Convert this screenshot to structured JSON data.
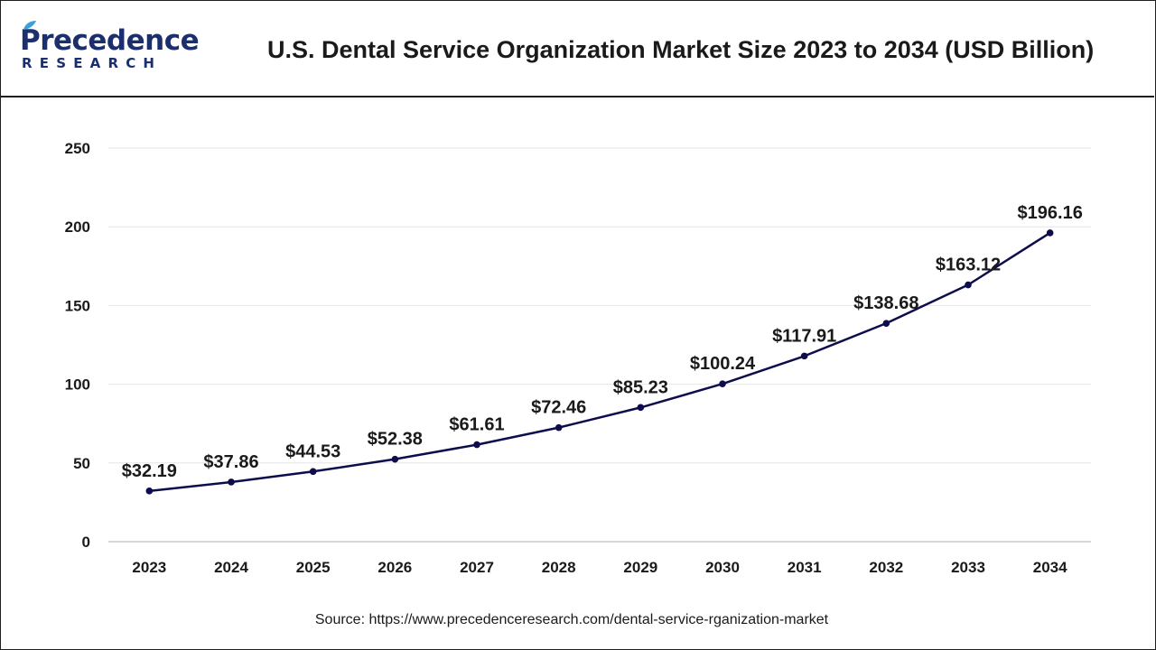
{
  "brand": {
    "name_main": "Precedence",
    "name_sub": "RESEARCH",
    "color": "#1b2f6e",
    "accent": "#3aa2d8"
  },
  "title": "U.S. Dental Service Organization Market Size 2023 to 2034 (USD Billion)",
  "source": "Source: https://www.precedenceresearch.com/dental-service-rganization-market",
  "chart_data": {
    "type": "line",
    "title": "U.S. Dental Service Organization Market Size 2023 to 2034 (USD Billion)",
    "xlabel": "",
    "ylabel": "",
    "ylim": [
      0,
      250
    ],
    "yticks": [
      0,
      50,
      100,
      150,
      200,
      250
    ],
    "grid": true,
    "legend": "none",
    "line_color": "#0d0d4d",
    "categories": [
      "2023",
      "2024",
      "2025",
      "2026",
      "2027",
      "2028",
      "2029",
      "2030",
      "2031",
      "2032",
      "2033",
      "2034"
    ],
    "values": [
      32.19,
      37.86,
      44.53,
      52.38,
      61.61,
      72.46,
      85.23,
      100.24,
      117.91,
      138.68,
      163.12,
      196.16
    ],
    "data_labels": [
      "$32.19",
      "$37.86",
      "$44.53",
      "$52.38",
      "$61.61",
      "$72.46",
      "$85.23",
      "$100.24",
      "$117.91",
      "$138.68",
      "$163.12",
      "$196.16"
    ]
  }
}
